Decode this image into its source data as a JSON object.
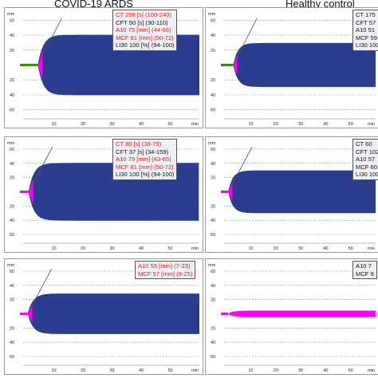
{
  "columns": {
    "left_title": "COVID-19 ARDS",
    "right_title": "Healthy control"
  },
  "colors": {
    "trace_blue": "#2c3d8f",
    "clot_magenta": "#ff00ff",
    "baseline_green": "#3b8a1e",
    "abnormal_text": "#e0201f",
    "normal_text": "#111111",
    "legend_bg": "#eef0f6"
  },
  "axis": {
    "y_unit": "mm",
    "x_unit": "min",
    "y_ticks": [
      "60",
      "40",
      "20",
      "20",
      "40",
      "60"
    ],
    "x_ticks": [
      "10",
      "20",
      "30",
      "40",
      "50"
    ]
  },
  "chart_data": [
    {
      "type": "area",
      "panel": "covid-top",
      "x_range": [
        0,
        60
      ],
      "x_label": "min",
      "y_label": "mm",
      "trace": {
        "ct_min": 4.5,
        "amplitude_mm": 81,
        "baseline_color": "green",
        "clot_color": "magenta"
      },
      "legend": [
        {
          "text": "CT 268 [s] (100-240)",
          "status": "abnormal"
        },
        {
          "text": "CFT 50 [s] (30-110)",
          "status": "normal"
        },
        {
          "text": "A10 75 [mm] (44-66)",
          "status": "abnormal"
        },
        {
          "text": "MCF 81 [mm] (50-72)",
          "status": "abnormal"
        },
        {
          "text": "LI30 100 [%] (94-100)",
          "status": "normal"
        }
      ]
    },
    {
      "type": "area",
      "panel": "healthy-top",
      "x_range": [
        0,
        60
      ],
      "x_label": "min",
      "y_label": "mm",
      "trace": {
        "ct_min": 3,
        "amplitude_mm": 59,
        "baseline_color": "green",
        "clot_color": "magenta"
      },
      "legend": [
        {
          "text": "CT 175",
          "status": "normal"
        },
        {
          "text": "CFT 57",
          "status": "normal"
        },
        {
          "text": "A10 51",
          "status": "normal"
        },
        {
          "text": "MCF 59",
          "status": "normal"
        },
        {
          "text": "LI30 100",
          "status": "normal"
        }
      ]
    },
    {
      "type": "area",
      "panel": "covid-middle",
      "x_range": [
        0,
        60
      ],
      "x_label": "min",
      "y_label": "mm",
      "trace": {
        "ct_min": 1.3,
        "amplitude_mm": 81,
        "baseline_color": "magenta",
        "clot_color": "magenta"
      },
      "legend": [
        {
          "text": "CT 80 [s] (38-79)",
          "status": "abnormal"
        },
        {
          "text": "CFT 37 [s] (34-159)",
          "status": "normal"
        },
        {
          "text": "A10 79 [mm] (43-65)",
          "status": "abnormal"
        },
        {
          "text": "MCF 81 [mm] (50-72)",
          "status": "abnormal"
        },
        {
          "text": "LI30 100 [%] (94-100)",
          "status": "normal"
        }
      ]
    },
    {
      "type": "area",
      "panel": "healthy-middle",
      "x_range": [
        0,
        60
      ],
      "x_label": "min",
      "y_label": "mm",
      "trace": {
        "ct_min": 1,
        "amplitude_mm": 60,
        "baseline_color": "magenta",
        "clot_color": "magenta"
      },
      "legend": [
        {
          "text": "CT 60",
          "status": "normal"
        },
        {
          "text": "CFT 102",
          "status": "normal"
        },
        {
          "text": "A10 57",
          "status": "normal"
        },
        {
          "text": "MCF 60",
          "status": "normal"
        },
        {
          "text": "LI30 100",
          "status": "normal"
        }
      ]
    },
    {
      "type": "area",
      "panel": "covid-bottom",
      "x_range": [
        0,
        60
      ],
      "x_label": "min",
      "y_label": "mm",
      "trace": {
        "ct_min": 1,
        "amplitude_mm": 57,
        "baseline_color": "magenta",
        "clot_color": "magenta"
      },
      "legend": [
        {
          "text": "A10 55 [mm] (7-23)",
          "status": "abnormal"
        },
        {
          "text": "MCF 57 [mm] (9-25)",
          "status": "abnormal"
        }
      ]
    },
    {
      "type": "area",
      "panel": "healthy-bottom",
      "x_range": [
        0,
        60
      ],
      "x_label": "min",
      "y_label": "mm",
      "trace": {
        "ct_min": 1,
        "amplitude_mm": 9,
        "baseline_color": "magenta",
        "clot_color": "magenta",
        "fill": "magenta"
      },
      "legend": [
        {
          "text": "A10 7",
          "status": "normal"
        },
        {
          "text": "MCF 9",
          "status": "normal"
        }
      ]
    }
  ]
}
